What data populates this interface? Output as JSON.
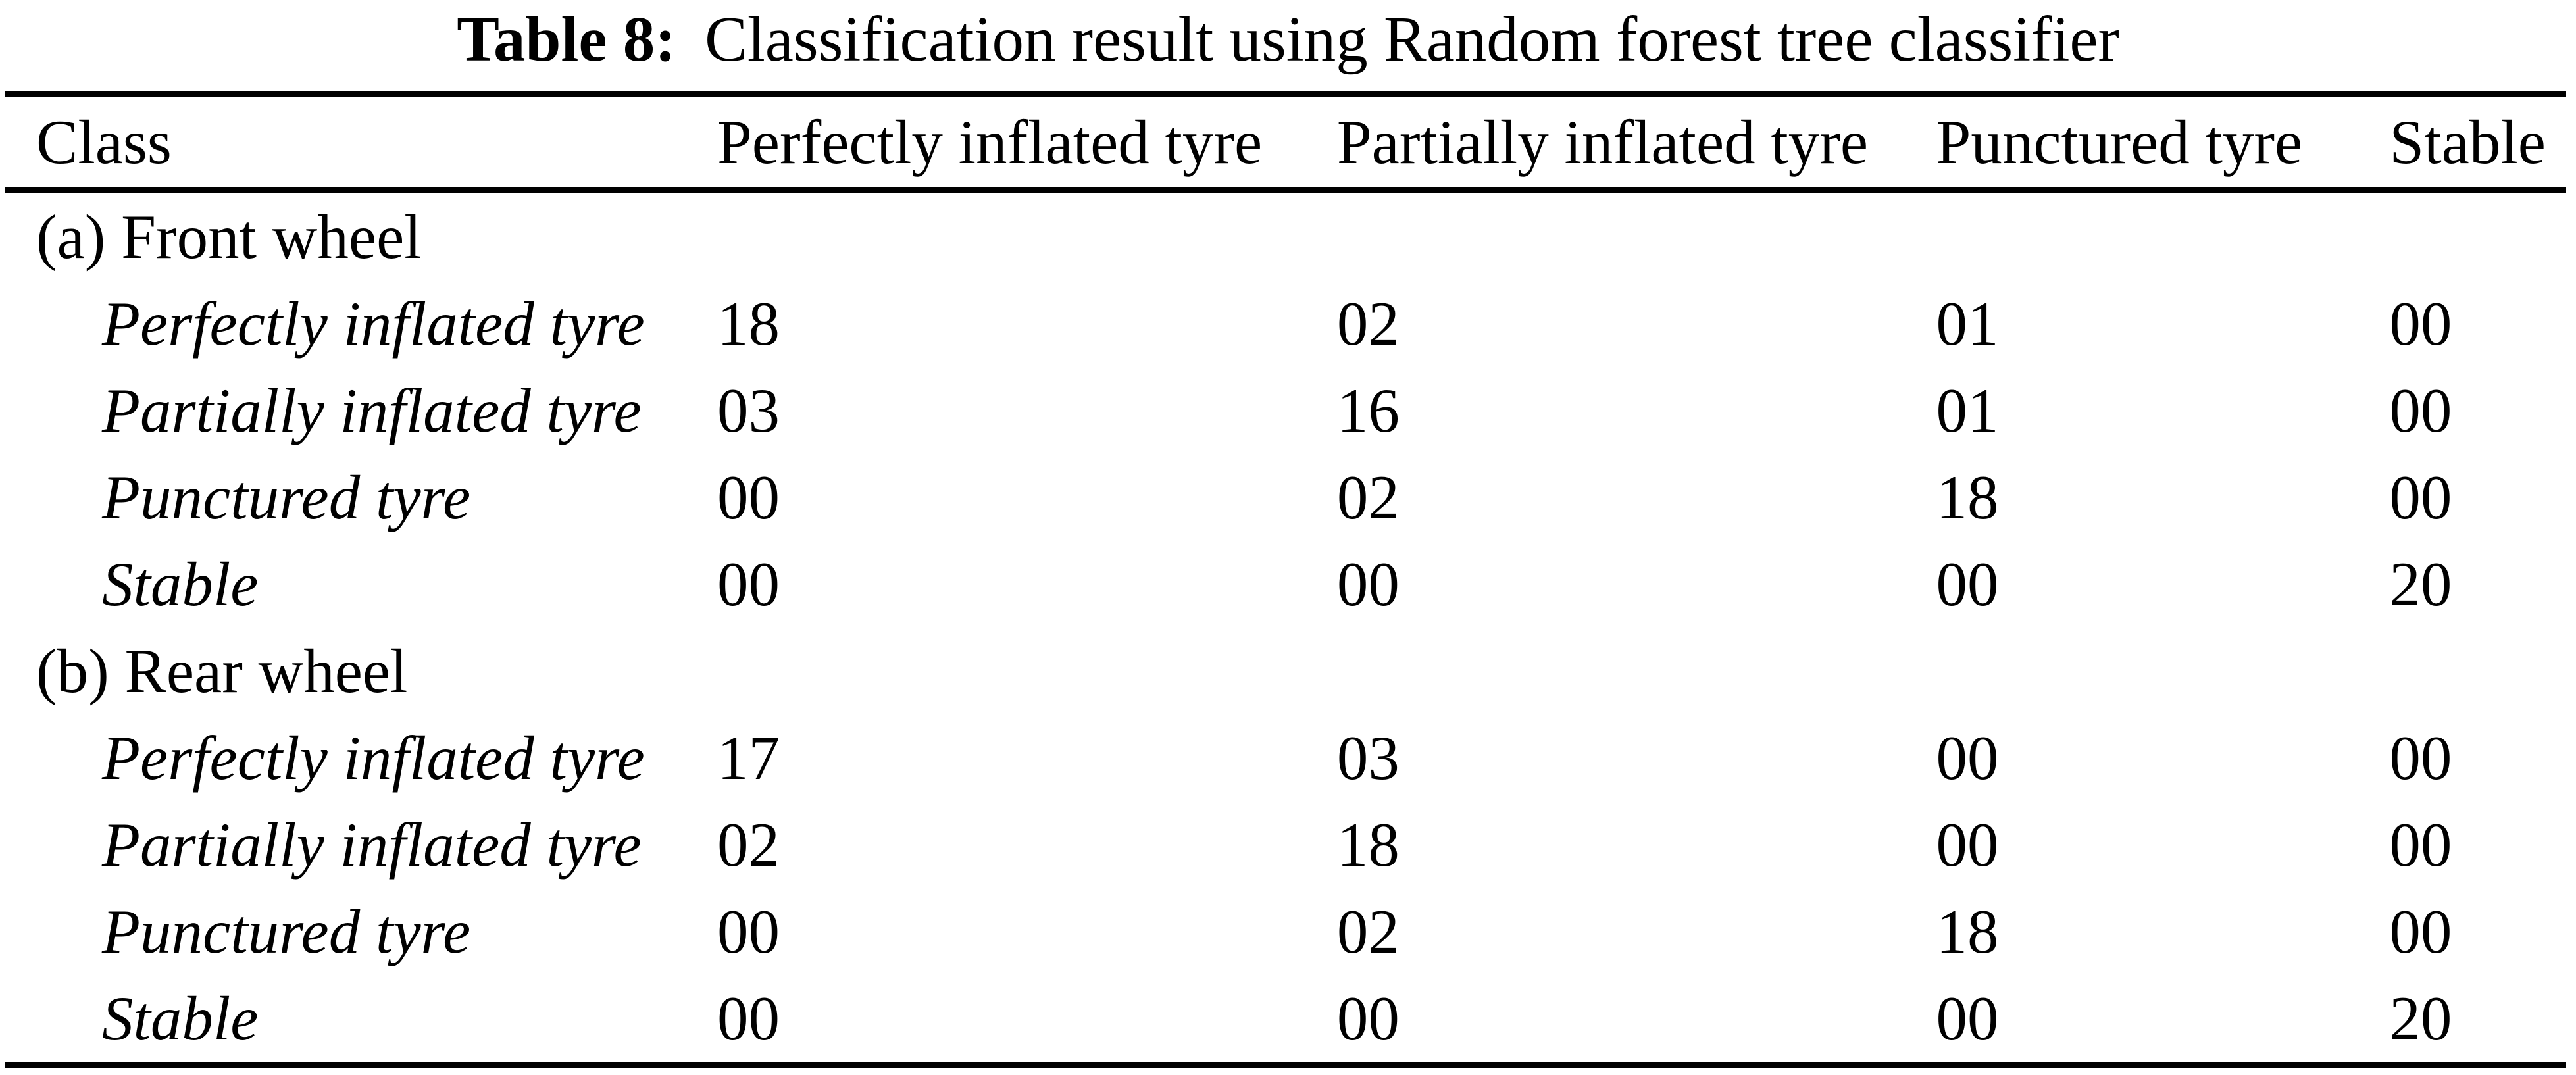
{
  "caption": {
    "label": "Table 8:",
    "text": "Classification result using Random forest tree classifier"
  },
  "table": {
    "columns": [
      "Class",
      "Perfectly inflated tyre",
      "Partially inflated tyre",
      "Punctured tyre",
      "Stable"
    ],
    "sections": [
      {
        "header": "(a) Front wheel",
        "rows": [
          {
            "label": "Perfectly inflated tyre",
            "values": [
              "18",
              "02",
              "01",
              "00"
            ]
          },
          {
            "label": "Partially inflated tyre",
            "values": [
              "03",
              "16",
              "01",
              "00"
            ]
          },
          {
            "label": "Punctured tyre",
            "values": [
              "00",
              "02",
              "18",
              "00"
            ]
          },
          {
            "label": "Stable",
            "values": [
              "00",
              "00",
              "00",
              "20"
            ]
          }
        ]
      },
      {
        "header": "(b) Rear wheel",
        "rows": [
          {
            "label": "Perfectly inflated tyre",
            "values": [
              "17",
              "03",
              "00",
              "00"
            ]
          },
          {
            "label": "Partially inflated tyre",
            "values": [
              "02",
              "18",
              "00",
              "00"
            ]
          },
          {
            "label": "Punctured tyre",
            "values": [
              "00",
              "02",
              "18",
              "00"
            ]
          },
          {
            "label": "Stable",
            "values": [
              "00",
              "00",
              "00",
              "20"
            ]
          }
        ]
      }
    ]
  },
  "colors": {
    "text": "#000000",
    "background": "#ffffff",
    "rule": "#000000"
  }
}
